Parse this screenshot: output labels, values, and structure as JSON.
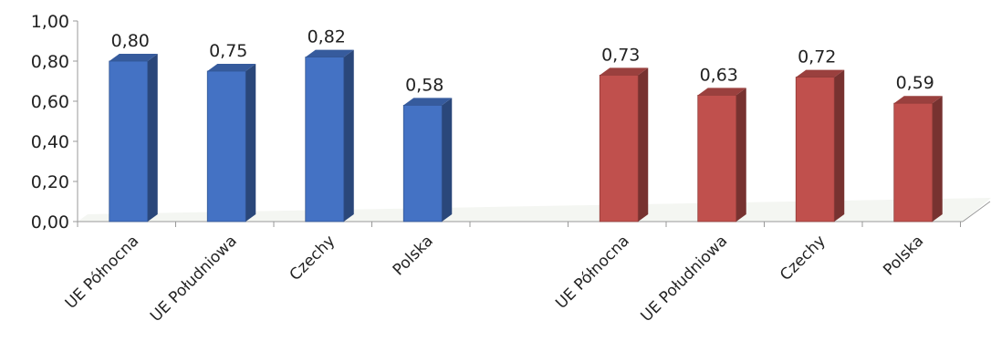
{
  "chart_data": {
    "type": "bar",
    "style": "3d-column",
    "ylim": [
      0,
      1
    ],
    "yticks": [
      "0,00",
      "0,20",
      "0,40",
      "0,60",
      "0,80",
      "1,00"
    ],
    "grid": false,
    "groups": [
      {
        "color": "#4472C4",
        "categories": [
          "UE Północna",
          "UE Południowa",
          "Czechy",
          "Polska"
        ],
        "values": [
          0.8,
          0.75,
          0.82,
          0.58
        ],
        "value_labels": [
          "0,80",
          "0,75",
          "0,82",
          "0,58"
        ]
      },
      {
        "color": "#C0504D",
        "categories": [
          "UE Północna",
          "UE Południowa",
          "Czechy",
          "Polska"
        ],
        "values": [
          0.73,
          0.63,
          0.72,
          0.59
        ],
        "value_labels": [
          "0,73",
          "0,63",
          "0,72",
          "0,59"
        ]
      }
    ]
  }
}
